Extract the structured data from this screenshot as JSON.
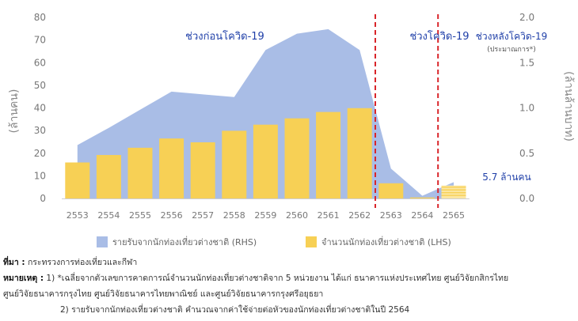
{
  "chart_data": {
    "type": "bar+area",
    "categories": [
      "2553",
      "2554",
      "2555",
      "2556",
      "2557",
      "2558",
      "2559",
      "2560",
      "2561",
      "2562",
      "2563",
      "2564",
      "2565"
    ],
    "left_axis": {
      "label": "(ล้านคน)",
      "ticks": [
        "0",
        "10",
        "20",
        "30",
        "40",
        "50",
        "60",
        "70",
        "80"
      ],
      "min": 0,
      "max": 80
    },
    "right_axis": {
      "label": "(ล้านล้านบาท)",
      "ticks": [
        "0.0",
        "0.5",
        "1.0",
        "1.5",
        "2.0"
      ],
      "min": 0,
      "max": 2.0
    },
    "series": [
      {
        "name": "รายรับจากนักท่องเที่ยวต่างชาติ (RHS)",
        "kind": "area",
        "axis": "right",
        "color": "#a9bde6",
        "values": [
          0.59,
          0.78,
          0.98,
          1.18,
          1.15,
          1.12,
          1.64,
          1.82,
          1.87,
          1.64,
          0.33,
          0.03,
          0.18
        ]
      },
      {
        "name": "จำนวนนักท่องเที่ยวต่างชาติ (LHS)",
        "kind": "bar",
        "axis": "left",
        "color": "#f7d055",
        "values": [
          15.9,
          19.2,
          22.4,
          26.5,
          24.8,
          29.9,
          32.6,
          35.4,
          38.2,
          39.9,
          6.7,
          0.43,
          5.7
        ]
      }
    ],
    "period_labels": [
      "ช่วงก่อนโควิด-19",
      "ช่วงโควิด-19",
      "ช่วงหลังโควิด-19"
    ],
    "period_sub_label": "(ประมาณการ*)",
    "annotation": "5.7 ล้านคน",
    "divider_color": "#d9252a",
    "text_color": "#1f3fa8"
  },
  "notes": {
    "source_label": "ที่มา :",
    "source_text": "กระทรวงการท่องเที่ยวและกีฬา",
    "remark_label": "หมายเหตุ :",
    "remark_1": "1) *เฉลี่ยจากตัวเลขการคาดการณ์จำนวนนักท่องเที่ยวต่างชาติจาก 5 หน่วยงาน ได้แก่ ธนาคารแห่งประเทศไทย ศูนย์วิจัยกสิกรไทย",
    "remark_1b": "ศูนย์วิจัยธนาคารกรุงไทย ศูนย์วิจัยธนาคารไทยพาณิชย์ และศูนย์วิจัยธนาคารกรุงศรีอยุธยา",
    "remark_2": "2) รายรับจากนักท่องเที่ยวต่างชาติ คำนวณจากค่าใช้จ่ายต่อหัวของนักท่องเที่ยวต่างชาติในปี 2564"
  }
}
